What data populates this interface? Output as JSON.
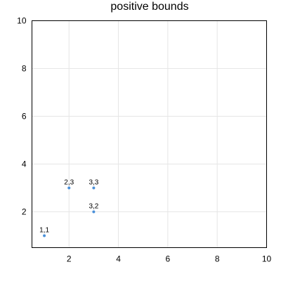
{
  "chart_data": {
    "type": "scatter",
    "title": "positive bounds",
    "xlabel": "",
    "ylabel": "",
    "xlim": [
      0.5,
      10
    ],
    "ylim": [
      0.5,
      10
    ],
    "x_ticks": [
      2,
      4,
      6,
      8,
      10
    ],
    "y_ticks": [
      2,
      4,
      6,
      8,
      10
    ],
    "grid": true,
    "legend": "none",
    "point_color": "#4a90d9",
    "points": [
      {
        "x": 1,
        "y": 1,
        "label": "1,1"
      },
      {
        "x": 2,
        "y": 3,
        "label": "2,3"
      },
      {
        "x": 3,
        "y": 3,
        "label": "3,3"
      },
      {
        "x": 3,
        "y": 2,
        "label": "3,2"
      }
    ]
  }
}
